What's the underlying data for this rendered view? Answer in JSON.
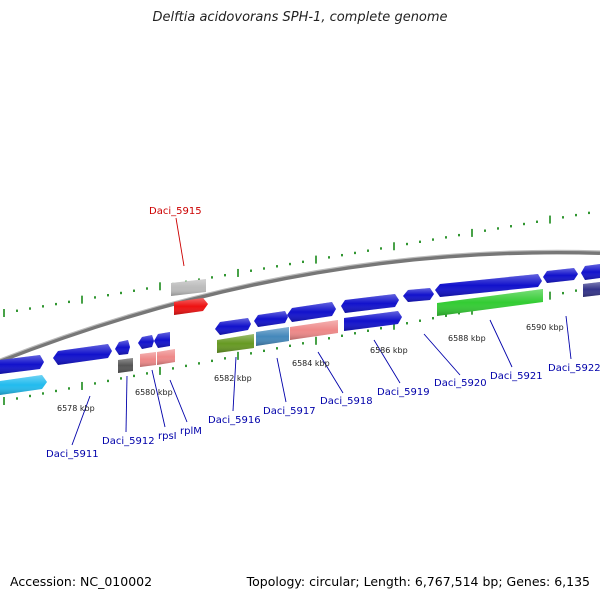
{
  "title": "Delftia acidovorans SPH-1, complete genome",
  "footer": {
    "accession": "Accession: NC_010002",
    "topology": "Topology: circular; Length: 6,767,514 bp; Genes: 6,135"
  },
  "colors": {
    "background": "#ffffff",
    "backbone": "#888888",
    "tick": "#1a8a1a",
    "label_default": "#0000aa",
    "label_highlight": "#cc0000",
    "feature_blue": "#1111cc",
    "feature_cyan": "#22bbee",
    "feature_green": "#33cc33",
    "feature_olive": "#669922",
    "feature_steel": "#4488bb",
    "feature_salmon": "#ee8888",
    "feature_red": "#ee1111",
    "feature_gray": "#bbbbbb",
    "feature_darkgray": "#555555",
    "feature_slate": "#333388"
  },
  "tick_labels": [
    "6578 kbp",
    "6580 kbp",
    "6582 kbp",
    "6584 kbp",
    "6586 kbp",
    "6588 kbp",
    "6590 kbp"
  ],
  "gene_labels": [
    "Daci_5915",
    "Daci_5911",
    "Daci_5912",
    "rpsI",
    "rplM",
    "Daci_5916",
    "Daci_5917",
    "Daci_5918",
    "Daci_5919",
    "Daci_5920",
    "Daci_5921",
    "Daci_5922"
  ]
}
